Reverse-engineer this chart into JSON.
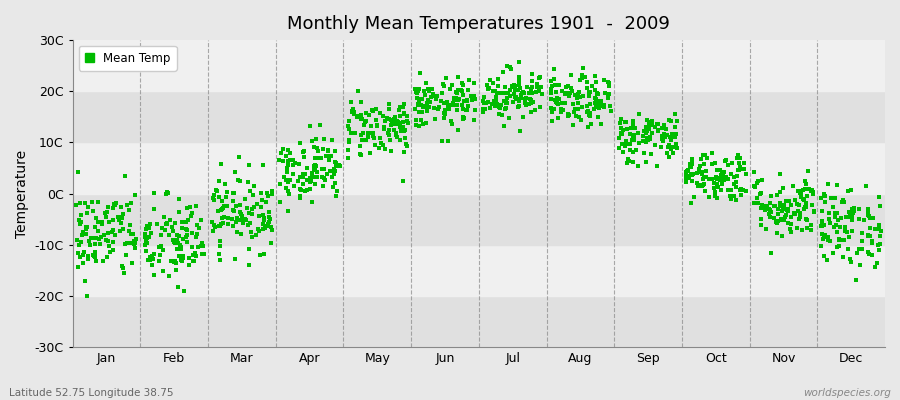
{
  "title": "Monthly Mean Temperatures 1901  -  2009",
  "ylabel": "Temperature",
  "ylim": [
    -30,
    30
  ],
  "yticks": [
    -30,
    -20,
    -10,
    0,
    10,
    20,
    30
  ],
  "ytick_labels": [
    "-30C",
    "-20C",
    "-10C",
    "0C",
    "10C",
    "20C",
    "30C"
  ],
  "months": [
    "Jan",
    "Feb",
    "Mar",
    "Apr",
    "May",
    "Jun",
    "Jul",
    "Aug",
    "Sep",
    "Oct",
    "Nov",
    "Dec"
  ],
  "monthly_means": [
    -8.0,
    -9.5,
    -3.5,
    5.0,
    13.0,
    17.5,
    19.5,
    18.0,
    11.0,
    3.5,
    -2.5,
    -6.5
  ],
  "monthly_stds": [
    4.5,
    4.5,
    3.8,
    3.2,
    3.0,
    2.5,
    2.5,
    2.5,
    2.5,
    2.5,
    3.2,
    4.0
  ],
  "n_years": 109,
  "dot_color": "#00BB00",
  "dot_size": 5,
  "bg_color": "#e8e8e8",
  "band_light": "#f0f0f0",
  "band_dark": "#e0e0e0",
  "grid_color": "#888888",
  "legend_label": "Mean Temp",
  "bottom_left_text": "Latitude 52.75 Longitude 38.75",
  "bottom_right_text": "worldspecies.org",
  "seed": 42
}
